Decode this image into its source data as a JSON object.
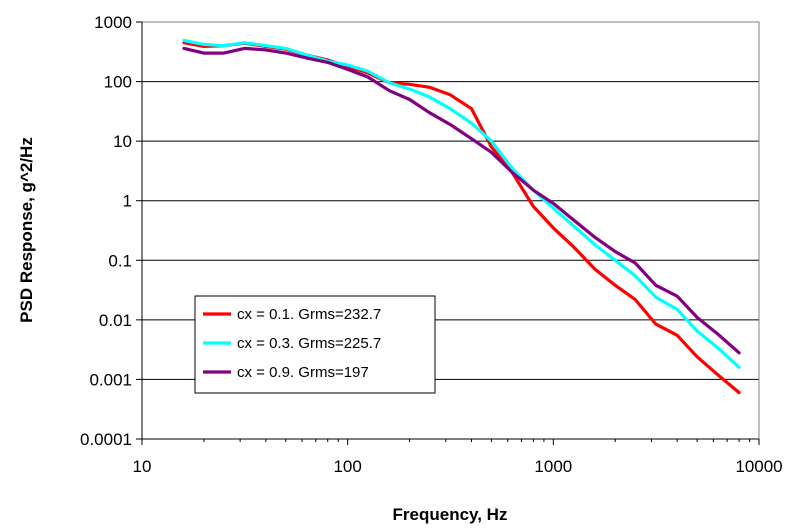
{
  "chart_data": {
    "type": "line",
    "title": "",
    "xlabel": "Frequency, Hz",
    "ylabel": "PSD Response, g^2/Hz",
    "x_scale": "log",
    "y_scale": "log",
    "xlim": [
      10,
      10000
    ],
    "ylim": [
      0.0001,
      1000
    ],
    "x_ticks": [
      "10",
      "100",
      "1000",
      "10000"
    ],
    "y_ticks": [
      "0.0001",
      "0.001",
      "0.01",
      "0.1",
      "1",
      "10",
      "100",
      "1000"
    ],
    "grid": "horizontal",
    "legend_position": "lower-left",
    "x": [
      16,
      20,
      25,
      31.5,
      40,
      50,
      63,
      80,
      100,
      125,
      160,
      200,
      250,
      315,
      400,
      500,
      630,
      800,
      1000,
      1250,
      1600,
      2000,
      2500,
      3150,
      4000,
      5000,
      6300,
      8000
    ],
    "series": [
      {
        "name": "cx = 0.1. Grms=232.7",
        "color": "#ff0000",
        "values": [
          450,
          390,
          400,
          440,
          390,
          350,
          280,
          230,
          180,
          140,
          95,
          90,
          80,
          60,
          35,
          8,
          3,
          0.8,
          0.35,
          0.17,
          0.07,
          0.038,
          0.022,
          0.0085,
          0.0055,
          0.0024,
          0.0012,
          0.0006
        ]
      },
      {
        "name": "cx = 0.3. Grms=225.7",
        "color": "#00ffff",
        "values": [
          490,
          420,
          400,
          450,
          400,
          360,
          280,
          220,
          190,
          150,
          95,
          75,
          55,
          35,
          20,
          10,
          3.5,
          1.5,
          0.75,
          0.38,
          0.18,
          0.1,
          0.055,
          0.024,
          0.015,
          0.0065,
          0.0034,
          0.0016
        ]
      },
      {
        "name": "cx = 0.9. Grms=197",
        "color": "#800080",
        "values": [
          360,
          300,
          300,
          360,
          340,
          300,
          250,
          210,
          160,
          120,
          70,
          50,
          30,
          19,
          11,
          6.5,
          3,
          1.5,
          0.9,
          0.48,
          0.24,
          0.14,
          0.09,
          0.038,
          0.025,
          0.011,
          0.0058,
          0.0028
        ]
      }
    ]
  }
}
